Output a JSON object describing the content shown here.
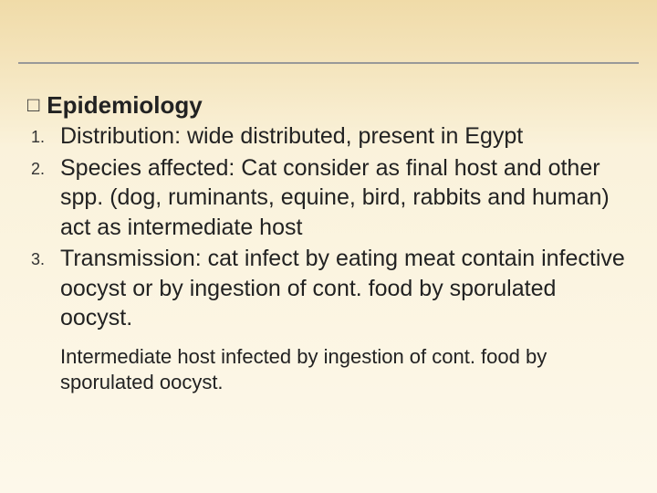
{
  "heading": {
    "bullet": "□",
    "text": "Epidemiology"
  },
  "items": [
    {
      "num": "1.",
      "term": "Distribution",
      "body": ": wide distributed, present in Egypt"
    },
    {
      "num": "2.",
      "term": "Species affected",
      "body": ": Cat consider as final host and other spp. (dog, ruminants, equine, bird, rabbits and human) act as intermediate host"
    },
    {
      "num": "3.",
      "term": "Transmission",
      "body": ": cat infect by eating meat contain infective oocyst or by ingestion of cont. food by sporulated oocyst."
    }
  ],
  "footer": "Intermediate host infected by ingestion of cont. food by sporulated oocyst."
}
